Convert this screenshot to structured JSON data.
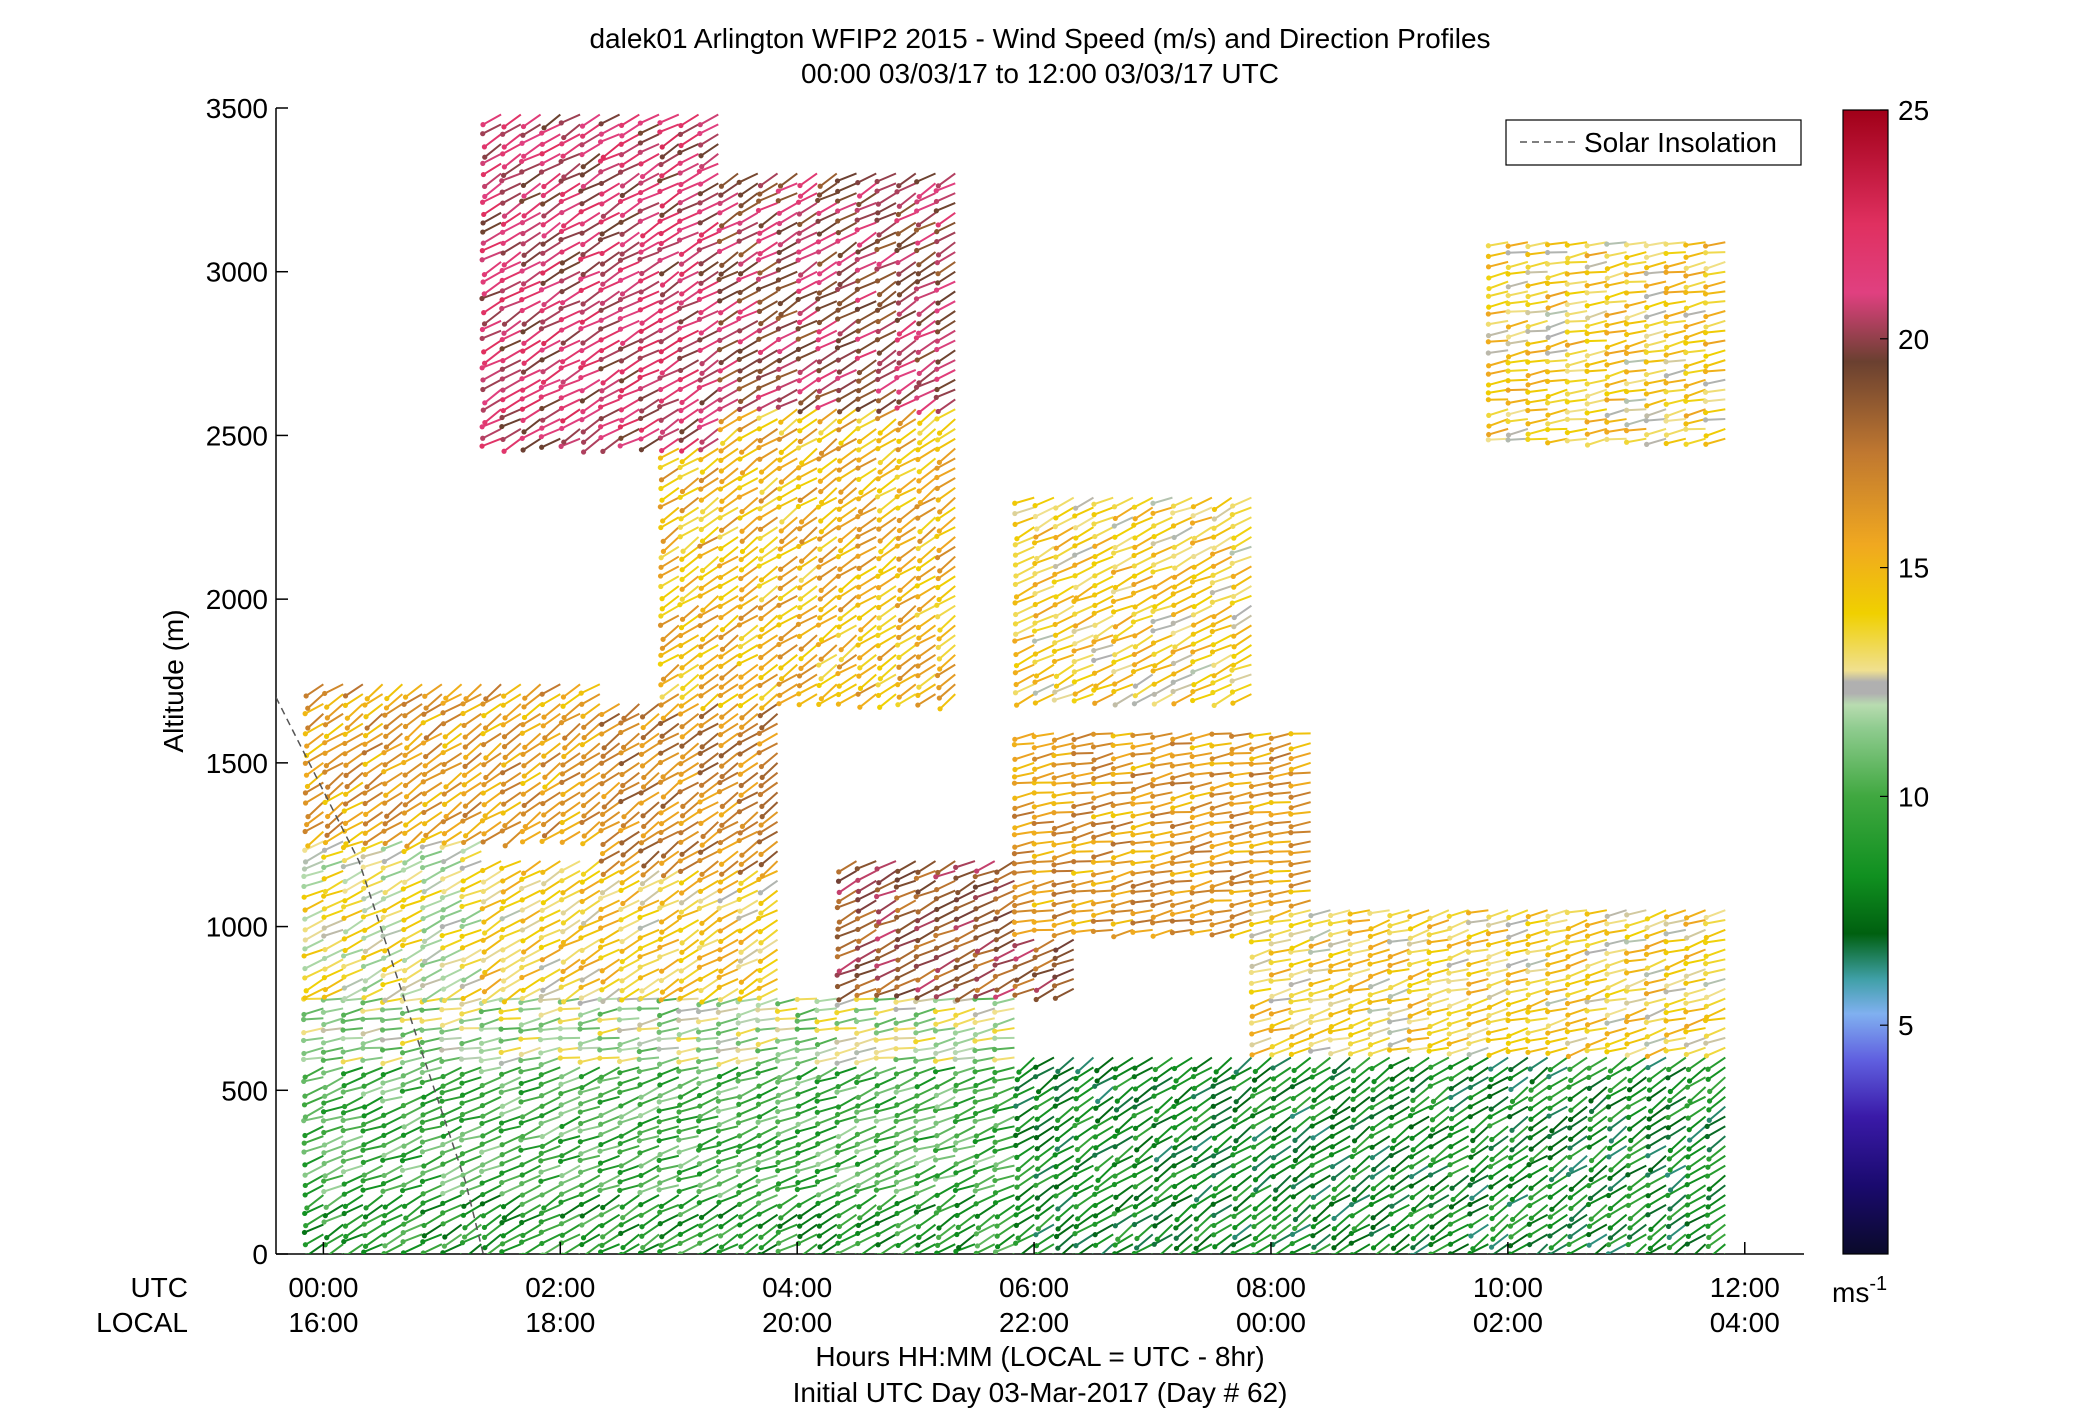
{
  "chart_data": {
    "type": "scatter",
    "title": "dalek01 Arlington WFIP2 2015 - Wind Speed (m/s) and Direction Profiles",
    "subtitle": "00:00 03/03/17 to 12:00 03/03/17  UTC",
    "ylabel": "Altitude (m)",
    "xlabel": "Hours HH:MM  (LOCAL = UTC - 8hr)",
    "xlabel2": "Initial UTC Day 03-Mar-2017 (Day # 62)",
    "utc_row_label": "UTC",
    "local_row_label": "LOCAL",
    "xlim_hours": [
      -0.4,
      12.5
    ],
    "ylim": [
      0,
      3500
    ],
    "yticks": [
      0,
      500,
      1000,
      1500,
      2000,
      2500,
      3000,
      3500
    ],
    "ytick_labels": [
      "0",
      "500",
      "1000",
      "1500",
      "2000",
      "2500",
      "3000",
      "3500"
    ],
    "xticks_hours": [
      0,
      2,
      4,
      6,
      8,
      10,
      12
    ],
    "utc_tick_labels": [
      "00:00",
      "02:00",
      "04:00",
      "06:00",
      "08:00",
      "10:00",
      "12:00"
    ],
    "local_tick_labels": [
      "16:00",
      "18:00",
      "20:00",
      "22:00",
      "00:00",
      "02:00",
      "04:00"
    ],
    "legend": {
      "entries": [
        "Solar Insolation"
      ],
      "placement": "top-right"
    },
    "colorbar": {
      "range": [
        0,
        25
      ],
      "ticks": [
        5,
        10,
        15,
        20,
        25
      ],
      "tick_labels": [
        "5",
        "10",
        "15",
        "20",
        "25"
      ],
      "unit_base": "ms",
      "unit_exp": "-1"
    },
    "solar_insolation_line": [
      [
        -0.4,
        1700
      ],
      [
        0.3,
        1200
      ],
      [
        0.8,
        650
      ],
      [
        1.2,
        220
      ],
      [
        1.35,
        0
      ]
    ],
    "wind_profiles": {
      "time_step_hours": 0.1667,
      "altitude_step_m": 30,
      "regions": [
        {
          "t": [
            0,
            12
          ],
          "z": [
            0,
            200
          ],
          "speed": 9,
          "direction_deg": 245
        },
        {
          "t": [
            0,
            12
          ],
          "z": [
            200,
            600
          ],
          "speed": 10,
          "direction_deg": 255
        },
        {
          "t": [
            0,
            6
          ],
          "z": [
            600,
            800
          ],
          "speed": 12,
          "direction_deg": 265
        },
        {
          "t": [
            0,
            1.5
          ],
          "z": [
            800,
            1300
          ],
          "speed": 13,
          "direction_deg": 250
        },
        {
          "t": [
            0,
            2.5
          ],
          "z": [
            1300,
            1750
          ],
          "speed": 16,
          "direction_deg": 240
        },
        {
          "t": [
            1.5,
            4
          ],
          "z": [
            800,
            1200
          ],
          "speed": 14,
          "direction_deg": 245
        },
        {
          "t": [
            2.5,
            4
          ],
          "z": [
            1200,
            1700
          ],
          "speed": 17,
          "direction_deg": 240
        },
        {
          "t": [
            3,
            5.5
          ],
          "z": [
            1700,
            2600
          ],
          "speed": 15,
          "direction_deg": 240
        },
        {
          "t": [
            1.5,
            3.5
          ],
          "z": [
            2500,
            3500
          ],
          "speed": 21,
          "direction_deg": 245
        },
        {
          "t": [
            3.5,
            5.5
          ],
          "z": [
            2600,
            3300
          ],
          "speed": 20,
          "direction_deg": 245
        },
        {
          "t": [
            4.5,
            6.5
          ],
          "z": [
            800,
            1200
          ],
          "speed": 19,
          "direction_deg": 250
        },
        {
          "t": [
            6,
            8.5
          ],
          "z": [
            1000,
            1600
          ],
          "speed": 16,
          "direction_deg": 265
        },
        {
          "t": [
            6,
            8
          ],
          "z": [
            1700,
            2300
          ],
          "speed": 14,
          "direction_deg": 250
        },
        {
          "t": [
            8,
            12
          ],
          "z": [
            600,
            1050
          ],
          "speed": 14,
          "direction_deg": 260
        },
        {
          "t": [
            6,
            12
          ],
          "z": [
            0,
            600
          ],
          "speed": 8,
          "direction_deg": 240
        },
        {
          "t": [
            10,
            12
          ],
          "z": [
            2500,
            3100
          ],
          "speed": 14,
          "direction_deg": 265
        }
      ]
    }
  }
}
